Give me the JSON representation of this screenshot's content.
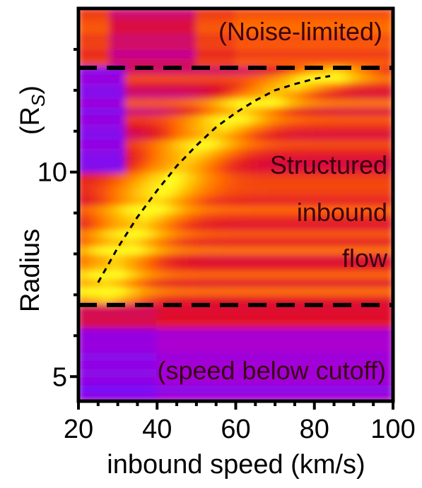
{
  "chart_data": {
    "type": "heatmap",
    "title": "",
    "xlabel": "inbound speed (km/s)",
    "ylabel": "Radius",
    "ylabel_unit_prefix": "(R",
    "ylabel_unit_sub": "S",
    "ylabel_unit_suffix": ")",
    "xlim": [
      20,
      100
    ],
    "ylim": [
      4.4,
      14.0
    ],
    "x_ticks": [
      20,
      40,
      60,
      80,
      100
    ],
    "x_tick_labels": [
      "20",
      "40",
      "60",
      "80",
      "100"
    ],
    "y_ticks": [
      5,
      10
    ],
    "y_tick_labels": [
      "5",
      "10"
    ],
    "colormap": [
      "#6a0dff",
      "#b700c8",
      "#e0102a",
      "#ff6a00",
      "#ffb000",
      "#ffff20"
    ],
    "boundaries": [
      {
        "name": "upper-boundary",
        "radius": 12.55,
        "style": "dashed"
      },
      {
        "name": "lower-boundary",
        "radius": 6.75,
        "style": "dashed"
      }
    ],
    "trend_curve": {
      "style": "dotted",
      "x": [
        25,
        30,
        35,
        40,
        45,
        50,
        55,
        60,
        65,
        70,
        75,
        80,
        84
      ],
      "y": [
        7.3,
        8.15,
        8.9,
        9.55,
        10.15,
        10.65,
        11.1,
        11.45,
        11.75,
        12.0,
        12.15,
        12.28,
        12.35
      ]
    },
    "annotations": [
      {
        "text": "(Noise-limited)"
      },
      {
        "text": "Structured"
      },
      {
        "text": "inbound"
      },
      {
        "text": "flow"
      },
      {
        "text": "(speed below cutoff)"
      }
    ]
  }
}
